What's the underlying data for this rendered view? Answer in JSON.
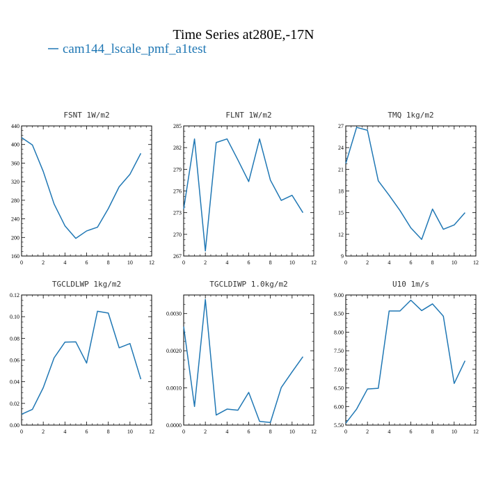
{
  "figure": {
    "title": "Time Series at280E,-17N",
    "legend_label": "cam144_lscale_pmf_a1test",
    "series_color": "#1f77b4"
  },
  "chart_data": [
    {
      "type": "line",
      "title": "FSNT   1W/m2",
      "xlim": [
        0,
        12
      ],
      "ylim": [
        160,
        440
      ],
      "x_ticks": [
        0,
        2,
        4,
        6,
        8,
        10,
        12
      ],
      "y_ticks": [
        160,
        200,
        240,
        280,
        320,
        360,
        400,
        440
      ],
      "y_tick_labels": [
        "160",
        "200",
        "240",
        "280",
        "320",
        "360",
        "400",
        "440"
      ],
      "series": [
        {
          "name": "cam144_lscale_pmf_a1test",
          "x": [
            0,
            1,
            2,
            3,
            4,
            5,
            6,
            7,
            8,
            9,
            10,
            11
          ],
          "y": [
            415,
            399,
            342,
            272,
            225,
            198,
            214,
            222,
            262,
            309,
            336,
            381
          ]
        }
      ]
    },
    {
      "type": "line",
      "title": "FLNT   1W/m2",
      "xlim": [
        0,
        12
      ],
      "ylim": [
        267,
        285
      ],
      "x_ticks": [
        0,
        2,
        4,
        6,
        8,
        10,
        12
      ],
      "y_ticks": [
        267,
        270,
        273,
        276,
        279,
        282,
        285
      ],
      "y_tick_labels": [
        "267",
        "270",
        "273",
        "276",
        "279",
        "282",
        "285"
      ],
      "series": [
        {
          "name": "cam144_lscale_pmf_a1test",
          "x": [
            0,
            1,
            2,
            3,
            4,
            5,
            6,
            7,
            8,
            9,
            10,
            11
          ],
          "y": [
            273.5,
            283.2,
            267.7,
            282.7,
            283.2,
            280.3,
            277.3,
            283.2,
            277.5,
            274.7,
            275.4,
            273.0
          ]
        }
      ]
    },
    {
      "type": "line",
      "title": "TMQ   1kg/m2",
      "xlim": [
        0,
        12
      ],
      "ylim": [
        9,
        27
      ],
      "x_ticks": [
        0,
        2,
        4,
        6,
        8,
        10,
        12
      ],
      "y_ticks": [
        9,
        12,
        15,
        18,
        21,
        24,
        27
      ],
      "y_tick_labels": [
        "9",
        "12",
        "15",
        "18",
        "21",
        "24",
        "27"
      ],
      "series": [
        {
          "name": "cam144_lscale_pmf_a1test",
          "x": [
            0,
            1,
            2,
            3,
            4,
            5,
            6,
            7,
            8,
            9,
            10,
            11
          ],
          "y": [
            21.8,
            26.8,
            26.4,
            19.4,
            17.4,
            15.3,
            12.9,
            11.3,
            15.5,
            12.7,
            13.3,
            15.0
          ]
        }
      ]
    },
    {
      "type": "line",
      "title": "TGCLDLWP   1kg/m2",
      "xlim": [
        0,
        12
      ],
      "ylim": [
        0,
        0.12
      ],
      "x_ticks": [
        0,
        2,
        4,
        6,
        8,
        10,
        12
      ],
      "y_ticks": [
        0,
        0.02,
        0.04,
        0.06,
        0.08,
        0.1,
        0.12
      ],
      "y_tick_labels": [
        "0.00",
        "0.02",
        "0.04",
        "0.06",
        "0.08",
        "0.10",
        "0.12"
      ],
      "series": [
        {
          "name": "cam144_lscale_pmf_a1test",
          "x": [
            0,
            1,
            2,
            3,
            4,
            5,
            6,
            7,
            8,
            9,
            10,
            11
          ],
          "y": [
            0.01,
            0.0145,
            0.0345,
            0.062,
            0.0765,
            0.0768,
            0.0572,
            0.105,
            0.1033,
            0.0713,
            0.0752,
            0.0423
          ]
        }
      ]
    },
    {
      "type": "line",
      "title": "TGCLDIWP   1.0kg/m2",
      "xlim": [
        0,
        12
      ],
      "ylim": [
        0,
        0.0035
      ],
      "x_ticks": [
        0,
        2,
        4,
        6,
        8,
        10,
        12
      ],
      "y_ticks": [
        0,
        0.001,
        0.002,
        0.003
      ],
      "y_tick_labels": [
        "0.0000",
        "0.0010",
        "0.0020",
        "0.0030"
      ],
      "series": [
        {
          "name": "cam144_lscale_pmf_a1test",
          "x": [
            0,
            1,
            2,
            3,
            4,
            5,
            6,
            7,
            8,
            9,
            10,
            11
          ],
          "y": [
            0.00265,
            0.0005,
            0.00338,
            0.00027,
            0.00043,
            0.0004,
            0.00088,
            0.0001,
            7e-05,
            0.00101,
            0.00143,
            0.00184
          ]
        }
      ]
    },
    {
      "type": "line",
      "title": "U10   1m/s",
      "xlim": [
        0,
        12
      ],
      "ylim": [
        5.5,
        9.0
      ],
      "x_ticks": [
        0,
        2,
        4,
        6,
        8,
        10,
        12
      ],
      "y_ticks": [
        5.5,
        6.0,
        6.5,
        7.0,
        7.5,
        8.0,
        8.5,
        9.0
      ],
      "y_tick_labels": [
        "5.50",
        "6.00",
        "6.50",
        "7.00",
        "7.50",
        "8.00",
        "8.50",
        "9.00"
      ],
      "series": [
        {
          "name": "cam144_lscale_pmf_a1test",
          "x": [
            0,
            1,
            2,
            3,
            4,
            5,
            6,
            7,
            8,
            9,
            10,
            11
          ],
          "y": [
            5.55,
            5.93,
            6.47,
            6.49,
            8.57,
            8.57,
            8.86,
            8.58,
            8.76,
            8.43,
            6.62,
            7.23
          ]
        }
      ]
    }
  ]
}
